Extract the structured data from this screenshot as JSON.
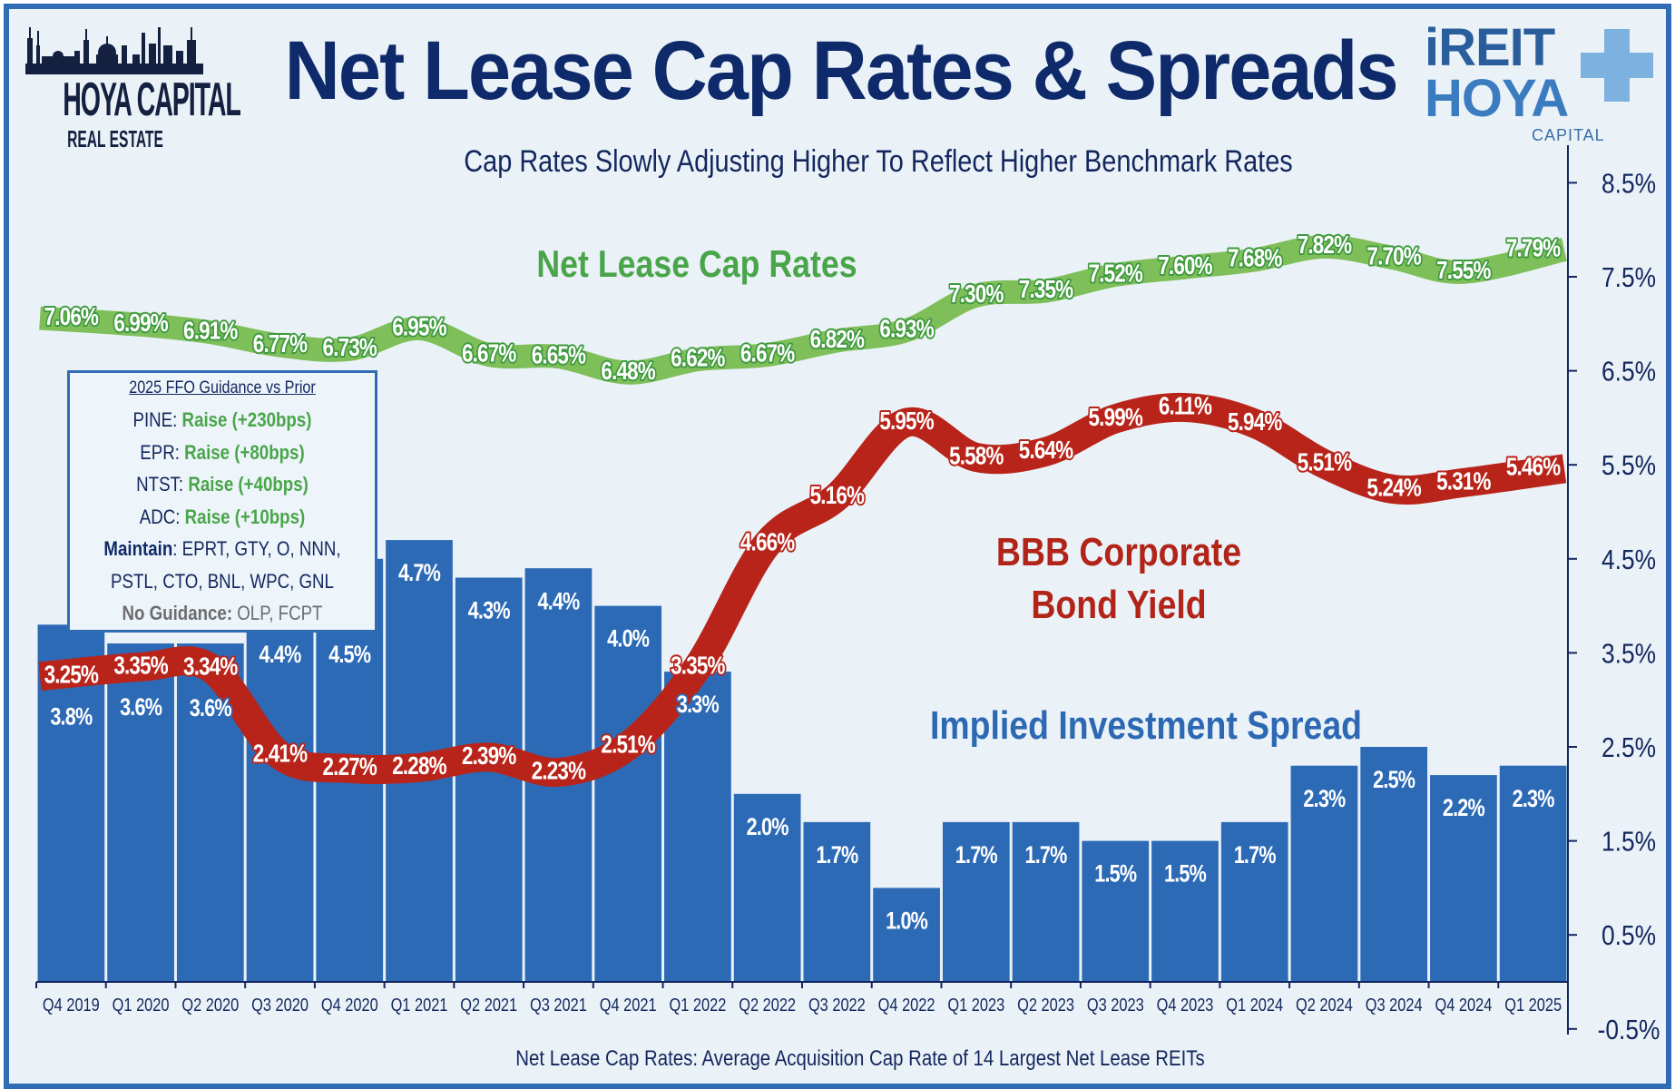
{
  "header": {
    "title": "Net Lease Cap Rates & Spreads",
    "subtitle": "Cap Rates Slowly Adjusting Higher To Reflect Higher Benchmark Rates",
    "footnote": "Net Lease Cap Rates: Average Acquisition Cap Rate of 14 Largest Net Lease REITs"
  },
  "logos": {
    "left": {
      "name": "HOYA CAPITAL",
      "sub": "REAL ESTATE"
    },
    "right": {
      "top": "iREIT",
      "middle": "HOYA",
      "bottom": "CAPITAL"
    }
  },
  "guidance_box": {
    "title": "2025 FFO Guidance vs Prior",
    "rows": [
      {
        "ticker": "PINE:",
        "value": "Raise (+230bps)"
      },
      {
        "ticker": "EPR:",
        "value": "Raise (+80bps)"
      },
      {
        "ticker": "NTST:",
        "value": "Raise (+40bps)"
      },
      {
        "ticker": "ADC:",
        "value": "Raise (+10bps)"
      }
    ],
    "maintain_label": "Maintain",
    "maintain_line1": ": EPRT, GTY, O, NNN,",
    "maintain_line2": "PSTL, CTO, BNL, WPC, GNL",
    "no_guidance_label": "No Guidance:",
    "no_guidance_value": " OLP, FCPT"
  },
  "colors": {
    "cap": "#7fbf5a",
    "cap_label": "#3f9a3f",
    "bbb": "#b8241a",
    "spread": "#2d6ab6",
    "navy": "#0f2a6b"
  },
  "chart_data": {
    "type": "bar+line",
    "categories": [
      "Q4 2019",
      "Q1 2020",
      "Q2 2020",
      "Q3 2020",
      "Q4 2020",
      "Q1 2021",
      "Q2 2021",
      "Q3 2021",
      "Q4 2021",
      "Q1 2022",
      "Q2 2022",
      "Q3 2022",
      "Q4 2022",
      "Q1 2023",
      "Q2 2023",
      "Q3 2023",
      "Q4 2023",
      "Q1 2024",
      "Q2 2024",
      "Q3 2024",
      "Q4 2024",
      "Q1 2025"
    ],
    "ylim": [
      -0.5,
      8.5
    ],
    "yticks": [
      "8.5%",
      "7.5%",
      "6.5%",
      "5.5%",
      "4.5%",
      "3.5%",
      "2.5%",
      "1.5%",
      "0.5%",
      "-0.5%"
    ],
    "ytick_values": [
      8.5,
      7.5,
      6.5,
      5.5,
      4.5,
      3.5,
      2.5,
      1.5,
      0.5,
      -0.5
    ],
    "y_axis_side": "right",
    "grid": false,
    "series": [
      {
        "name": "Net Lease Cap Rates",
        "type": "line",
        "values": [
          7.06,
          6.99,
          6.91,
          6.77,
          6.73,
          6.95,
          6.67,
          6.65,
          6.48,
          6.62,
          6.67,
          6.82,
          6.93,
          7.3,
          7.35,
          7.52,
          7.6,
          7.68,
          7.82,
          7.7,
          7.55,
          7.79
        ],
        "labels": [
          "7.06%",
          "6.99%",
          "6.91%",
          "6.77%",
          "6.73%",
          "6.95%",
          "6.67%",
          "6.65%",
          "6.48%",
          "6.62%",
          "6.67%",
          "6.82%",
          "6.93%",
          "7.30%",
          "7.35%",
          "7.52%",
          "7.60%",
          "7.68%",
          "7.82%",
          "7.70%",
          "7.55%",
          "7.79%"
        ]
      },
      {
        "name": "BBB Corporate Bond Yield",
        "type": "line",
        "values": [
          3.25,
          3.35,
          3.34,
          2.41,
          2.27,
          2.28,
          2.39,
          2.23,
          2.51,
          3.35,
          4.66,
          5.16,
          5.95,
          5.58,
          5.64,
          5.99,
          6.11,
          5.94,
          5.51,
          5.24,
          5.31,
          5.46
        ],
        "labels": [
          "3.25%",
          "3.35%",
          "3.34%",
          "2.41%",
          "2.27%",
          "2.28%",
          "2.39%",
          "2.23%",
          "2.51%",
          "3.35%",
          "4.66%",
          "5.16%",
          "5.95%",
          "5.58%",
          "5.64%",
          "5.99%",
          "6.11%",
          "5.94%",
          "5.51%",
          "5.24%",
          "5.31%",
          "5.46%"
        ]
      },
      {
        "name": "Implied Investment Spread",
        "type": "bar",
        "values": [
          3.8,
          3.6,
          3.6,
          4.4,
          4.5,
          4.7,
          4.3,
          4.4,
          4.0,
          3.3,
          2.0,
          1.7,
          1.0,
          1.7,
          1.7,
          1.5,
          1.5,
          1.7,
          2.3,
          2.5,
          2.2,
          2.3
        ],
        "labels": [
          "3.8%",
          "3.6%",
          "3.6%",
          "4.4%",
          "4.5%",
          "4.7%",
          "4.3%",
          "4.4%",
          "4.0%",
          "3.3%",
          "2.0%",
          "1.7%",
          "1.0%",
          "1.7%",
          "1.7%",
          "1.5%",
          "1.5%",
          "1.7%",
          "2.3%",
          "2.5%",
          "2.2%",
          "2.3%"
        ]
      }
    ]
  }
}
